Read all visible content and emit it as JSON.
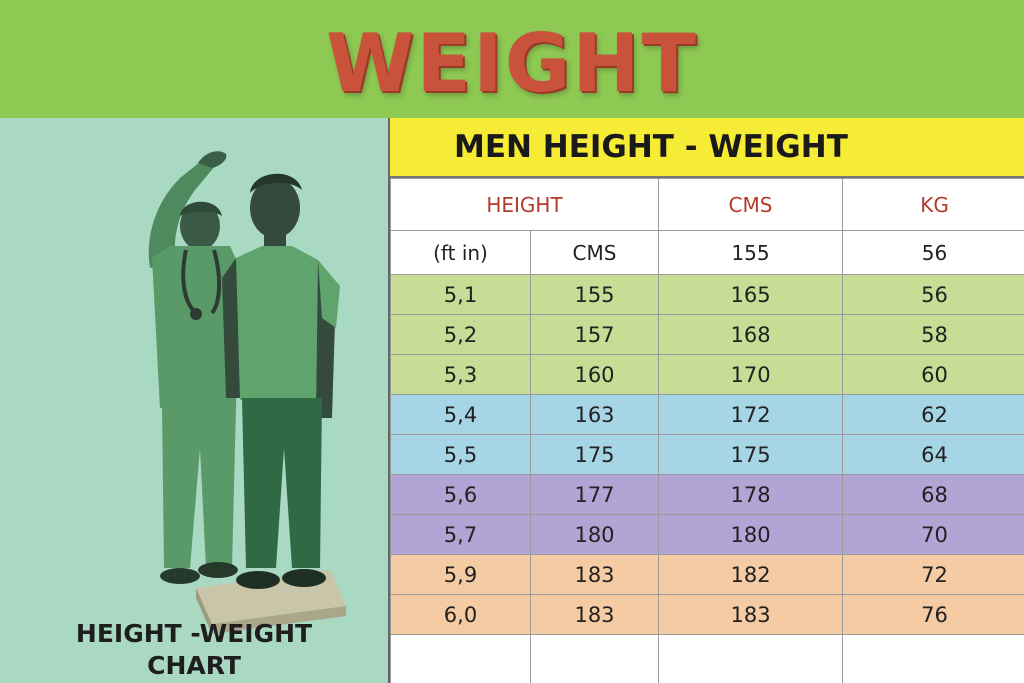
{
  "banner": {
    "title": "WEIGHT"
  },
  "caption": {
    "line1": "HEIGHT -WEIGHT",
    "line2": "CHART"
  },
  "table": {
    "title": "MEN HEIGHT - WEIGHT",
    "headers": {
      "height": "HEIGHT",
      "cms": "CMS",
      "kg": "KG"
    },
    "subheaders": {
      "ftin": "(ft in)",
      "cms": "CMS",
      "cms_value": "155",
      "kg_value": "56"
    },
    "rows": [
      {
        "ftin": "5,1",
        "cms": "155",
        "cms2": "165",
        "kg": "56",
        "color": "#c5dd94"
      },
      {
        "ftin": "5,2",
        "cms": "157",
        "cms2": "168",
        "kg": "58",
        "color": "#c5dd94"
      },
      {
        "ftin": "5,3",
        "cms": "160",
        "cms2": "170",
        "kg": "60",
        "color": "#c5dd94"
      },
      {
        "ftin": "5,4",
        "cms": "163",
        "cms2": "172",
        "kg": "62",
        "color": "#a6d5e6"
      },
      {
        "ftin": "5,5",
        "cms": "175",
        "cms2": "175",
        "kg": "64",
        "color": "#a6d5e6"
      },
      {
        "ftin": "5,6",
        "cms": "177",
        "cms2": "178",
        "kg": "68",
        "color": "#b2a4d4"
      },
      {
        "ftin": "5,7",
        "cms": "180",
        "cms2": "180",
        "kg": "70",
        "color": "#b2a4d4"
      },
      {
        "ftin": "5,9",
        "cms": "183",
        "cms2": "182",
        "kg": "72",
        "color": "#f5cba4"
      },
      {
        "ftin": "6,0",
        "cms": "183",
        "cms2": "183",
        "kg": "76",
        "color": "#f5cba4"
      }
    ]
  }
}
